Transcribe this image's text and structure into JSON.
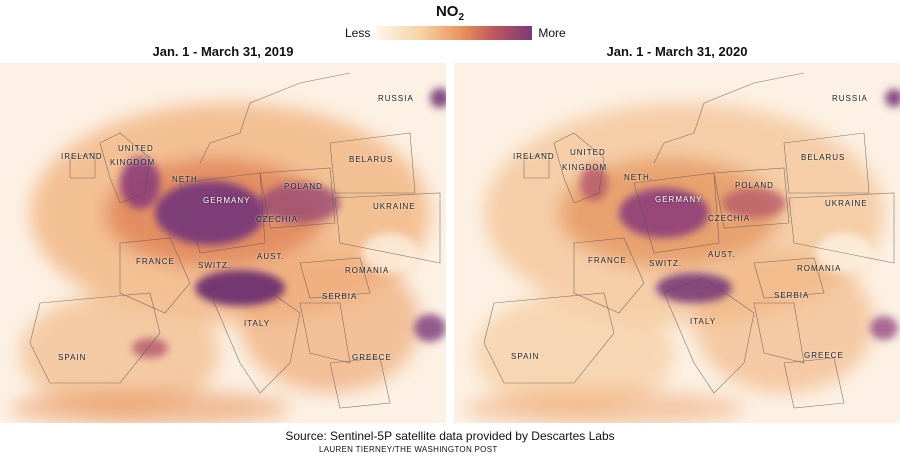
{
  "legend": {
    "title": "NO",
    "title_sub": "2",
    "less": "Less",
    "more": "More",
    "colors": [
      "#fdf6ea",
      "#f7d0a2",
      "#e9925c",
      "#c0585c",
      "#7a3a78"
    ]
  },
  "panels": [
    {
      "title": "Jan. 1 - March 31, 2019",
      "labels": {
        "russia": "RUSSIA",
        "ireland": "IRELAND",
        "united": "UNITED",
        "kingdom": "KINGDOM",
        "neth": "NETH.",
        "germany": "GERMANY",
        "poland": "POLAND",
        "belarus": "BELARUS",
        "czechia": "CZECHIA",
        "ukraine": "UKRAINE",
        "france": "FRANCE",
        "switz": "SWITZ.",
        "aust": "AUST.",
        "romania": "ROMANIA",
        "serbia": "SERBIA",
        "italy": "ITALY",
        "spain": "SPAIN",
        "greece": "GREECE"
      }
    },
    {
      "title": "Jan. 1 - March 31, 2020",
      "labels": {
        "russia": "RUSSIA",
        "ireland": "IRELAND",
        "united": "UNITED",
        "kingdom": "KINGDOM",
        "neth": "NETH.",
        "germany": "GERMANY",
        "poland": "POLAND",
        "belarus": "BELARUS",
        "czechia": "CZECHIA",
        "ukraine": "UKRAINE",
        "france": "FRANCE",
        "switz": "SWITZ.",
        "aust": "AUST.",
        "romania": "ROMANIA",
        "serbia": "SERBIA",
        "italy": "ITALY",
        "spain": "SPAIN",
        "greece": "GREECE"
      }
    }
  ],
  "source": "Source: Sentinel-5P satellite data provided by Descartes Labs",
  "credit": "LAUREN TIERNEY/THE WASHINGTON POST"
}
